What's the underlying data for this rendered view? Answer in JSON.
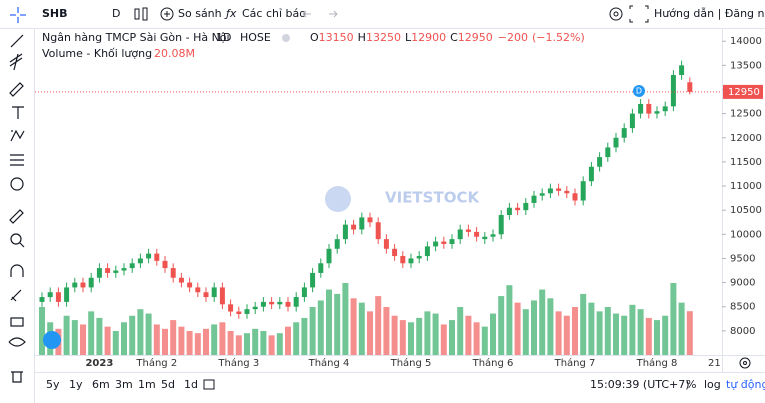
{
  "toolbar": {
    "symbol": "SHB",
    "interval": "D",
    "compare": "So sánh",
    "indicators": "Các chỉ báo",
    "auth": "Hướng dẫn | Đăng nhập"
  },
  "bottom_bar": {
    "ranges": [
      "5y",
      "1y",
      "6m",
      "3m",
      "1m",
      "5d",
      "1d"
    ],
    "time": "15:09:39 (UTC+7)",
    "percent": "%",
    "log": "log",
    "auto": "tự động"
  },
  "chart_data": {
    "type": "candlestick",
    "name": "Ngân hàng TMCP Sài Gòn - Hà Nội",
    "interval": "1D",
    "exchange": "HOSE",
    "legend_labels": {
      "open": "O",
      "high": "H",
      "low": "L",
      "close": "C"
    },
    "change": {
      "value": -200,
      "label": "−200"
    },
    "change_pct": {
      "value": -1.52,
      "label": "(−1.52%)"
    },
    "volume_title": "Volume - Khối lượng",
    "volume_last_label": "20.08M",
    "watermark": "VIETSTOCK",
    "event_label": "D",
    "up_color": "#26a65b",
    "down_color": "#ef5350",
    "categories": [
      null,
      null,
      null,
      null,
      null,
      null,
      null,
      "2023",
      null,
      null,
      null,
      null,
      null,
      null,
      "Tháng 2",
      null,
      null,
      null,
      null,
      null,
      null,
      null,
      null,
      null,
      "Tháng 3",
      null,
      null,
      null,
      null,
      null,
      null,
      null,
      null,
      null,
      null,
      "Tháng 4",
      null,
      null,
      null,
      null,
      null,
      null,
      null,
      null,
      null,
      "Tháng 5",
      null,
      null,
      null,
      null,
      null,
      null,
      null,
      null,
      null,
      "Tháng 6",
      null,
      null,
      null,
      null,
      null,
      null,
      null,
      null,
      null,
      "Tháng 7",
      null,
      null,
      null,
      null,
      null,
      null,
      null,
      null,
      null,
      "Tháng 8",
      null,
      null,
      null,
      null,
      null,
      null,
      "21"
    ],
    "open": [
      8600,
      8700,
      8800,
      8600,
      8900,
      9000,
      8900,
      9100,
      9300,
      9200,
      9250,
      9300,
      9400,
      9500,
      9600,
      9450,
      9300,
      9100,
      9000,
      8900,
      8800,
      8700,
      8900,
      8550,
      8400,
      8350,
      8450,
      8500,
      8600,
      8550,
      8600,
      8500,
      8700,
      8900,
      9200,
      9400,
      9700,
      9900,
      10200,
      10100,
      10350,
      10250,
      9900,
      9700,
      9550,
      9400,
      9500,
      9550,
      9750,
      9850,
      9800,
      9900,
      10100,
      10050,
      9900,
      9950,
      10000,
      10400,
      10550,
      10500,
      10650,
      10800,
      10850,
      10950,
      10900,
      10850,
      10700,
      11100,
      11400,
      11600,
      11800,
      12000,
      12200,
      12500,
      12700,
      12500,
      12550,
      12650,
      13300,
      13150,
      null,
      null,
      null
    ],
    "high": [
      8800,
      8900,
      8900,
      9000,
      9100,
      9100,
      9200,
      9400,
      9400,
      9350,
      9400,
      9500,
      9600,
      9700,
      9700,
      9550,
      9400,
      9200,
      9100,
      9000,
      8900,
      9000,
      9000,
      8650,
      8500,
      8550,
      8600,
      8700,
      8700,
      8700,
      8700,
      8800,
      9000,
      9300,
      9500,
      9800,
      10000,
      10300,
      10300,
      10450,
      10450,
      10350,
      10000,
      9800,
      9650,
      9600,
      9650,
      9850,
      9950,
      9950,
      10000,
      10200,
      10200,
      10150,
      10050,
      10100,
      10500,
      10650,
      10650,
      10750,
      10900,
      10950,
      11050,
      11050,
      11000,
      10950,
      11200,
      11500,
      11700,
      11900,
      12100,
      12300,
      12600,
      12800,
      12800,
      12650,
      12750,
      13400,
      13600,
      13250,
      null,
      null,
      null
    ],
    "low": [
      8500,
      8600,
      8500,
      8500,
      8800,
      8800,
      8800,
      9000,
      9100,
      9100,
      9150,
      9200,
      9300,
      9400,
      9350,
      9200,
      9000,
      8900,
      8800,
      8700,
      8600,
      8600,
      8450,
      8300,
      8250,
      8250,
      8350,
      8400,
      8450,
      8450,
      8400,
      8400,
      8600,
      8800,
      9100,
      9300,
      9600,
      9800,
      10000,
      10000,
      10150,
      9800,
      9600,
      9450,
      9300,
      9300,
      9400,
      9450,
      9650,
      9700,
      9700,
      9800,
      9950,
      9850,
      9800,
      9850,
      9900,
      10300,
      10400,
      10400,
      10550,
      10700,
      10750,
      10800,
      10750,
      10600,
      10600,
      11000,
      11300,
      11500,
      11700,
      11900,
      12100,
      12400,
      12400,
      12400,
      12450,
      12550,
      13200,
      12900,
      null,
      null,
      null
    ],
    "close": [
      8700,
      8800,
      8600,
      8900,
      9000,
      8900,
      9100,
      9300,
      9200,
      9250,
      9300,
      9400,
      9500,
      9600,
      9450,
      9300,
      9100,
      9000,
      8900,
      8800,
      8700,
      8900,
      8550,
      8400,
      8350,
      8450,
      8500,
      8600,
      8550,
      8600,
      8500,
      8700,
      8900,
      9200,
      9400,
      9700,
      9900,
      10200,
      10100,
      10350,
      10250,
      9900,
      9700,
      9550,
      9400,
      9500,
      9550,
      9750,
      9850,
      9800,
      9900,
      10100,
      10050,
      9950,
      9950,
      10000,
      10400,
      10550,
      10500,
      10650,
      10800,
      10850,
      10950,
      10900,
      10850,
      10700,
      11100,
      11400,
      11600,
      11800,
      12000,
      12200,
      12500,
      12700,
      12500,
      12550,
      12650,
      13300,
      13500,
      12950,
      null,
      null,
      null
    ],
    "volume": [
      22000000,
      15000000,
      12000000,
      18000000,
      16000000,
      14000000,
      20000000,
      17000000,
      13000000,
      11000000,
      15000000,
      18000000,
      21000000,
      19000000,
      14000000,
      12000000,
      16000000,
      13000000,
      11000000,
      10000000,
      12000000,
      14000000,
      15000000,
      11000000,
      9000000,
      10000000,
      12000000,
      11000000,
      9000000,
      10000000,
      13000000,
      15000000,
      17000000,
      22000000,
      25000000,
      30000000,
      28000000,
      33000000,
      26000000,
      24000000,
      20000000,
      27000000,
      22000000,
      18000000,
      16000000,
      15000000,
      17000000,
      20000000,
      19000000,
      14000000,
      16000000,
      22000000,
      18000000,
      15000000,
      13000000,
      19000000,
      27000000,
      32000000,
      24000000,
      21000000,
      25000000,
      30000000,
      26000000,
      20000000,
      18000000,
      22000000,
      28000000,
      24000000,
      20000000,
      22000000,
      19000000,
      18000000,
      23000000,
      21000000,
      17000000,
      16000000,
      18000000,
      33000000,
      24000000,
      20080000,
      null,
      null,
      null
    ],
    "ylim": [
      7500,
      14170
    ],
    "yticks": [
      8000,
      8500,
      9000,
      9500,
      10000,
      10500,
      11000,
      11500,
      12000,
      12500,
      13000,
      13500,
      14000
    ],
    "grid": false
  }
}
